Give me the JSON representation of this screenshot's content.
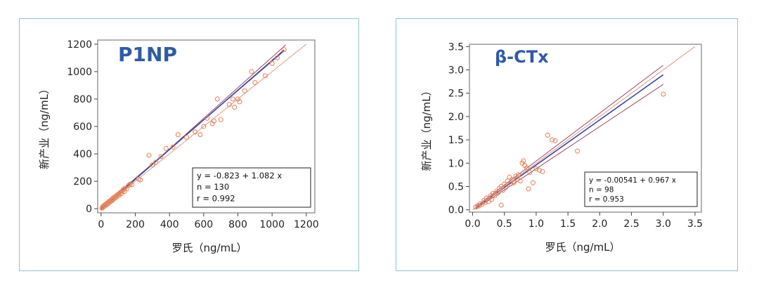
{
  "chart_data": [
    {
      "type": "scatter",
      "title": "P1NP",
      "xlabel": "罗氏（ng/mL）",
      "ylabel": "新产业（ng/mL）",
      "xlim": [
        -20,
        1250
      ],
      "ylim": [
        -30,
        1230
      ],
      "xticks": [
        0,
        200,
        400,
        600,
        800,
        1000,
        1200
      ],
      "yticks": [
        0,
        200,
        400,
        600,
        800,
        1000,
        1200
      ],
      "grid": false,
      "stats": [
        "y = -0.823  +  1.082  x",
        "n = 130",
        "r = 0.992"
      ],
      "regression": {
        "intercept": -0.823,
        "slope": 1.082,
        "x_range": [
          0,
          1070
        ]
      },
      "ci_lines": [
        {
          "x": [
            0,
            1080
          ],
          "y": [
            -10,
            1195
          ]
        },
        {
          "x": [
            0,
            1070
          ],
          "y": [
            8,
            1150
          ]
        }
      ],
      "identity_line": {
        "x": [
          0,
          1200
        ],
        "y": [
          0,
          1200
        ]
      },
      "points": [
        [
          5,
          4
        ],
        [
          8,
          10
        ],
        [
          12,
          18
        ],
        [
          15,
          14
        ],
        [
          18,
          25
        ],
        [
          20,
          22
        ],
        [
          25,
          30
        ],
        [
          28,
          26
        ],
        [
          32,
          38
        ],
        [
          35,
          33
        ],
        [
          40,
          45
        ],
        [
          42,
          40
        ],
        [
          45,
          52
        ],
        [
          50,
          48
        ],
        [
          55,
          60
        ],
        [
          58,
          55
        ],
        [
          62,
          68
        ],
        [
          65,
          60
        ],
        [
          70,
          75
        ],
        [
          72,
          80
        ],
        [
          75,
          72
        ],
        [
          80,
          85
        ],
        [
          85,
          90
        ],
        [
          88,
          82
        ],
        [
          90,
          95
        ],
        [
          95,
          100
        ],
        [
          100,
          105
        ],
        [
          105,
          98
        ],
        [
          110,
          115
        ],
        [
          115,
          120
        ],
        [
          120,
          110
        ],
        [
          125,
          130
        ],
        [
          130,
          140
        ],
        [
          135,
          125
        ],
        [
          140,
          150
        ],
        [
          150,
          145
        ],
        [
          160,
          170
        ],
        [
          170,
          180
        ],
        [
          180,
          175
        ],
        [
          220,
          215
        ],
        [
          230,
          210
        ],
        [
          280,
          390
        ],
        [
          300,
          320
        ],
        [
          320,
          340
        ],
        [
          350,
          380
        ],
        [
          380,
          440
        ],
        [
          420,
          450
        ],
        [
          450,
          540
        ],
        [
          500,
          520
        ],
        [
          550,
          560
        ],
        [
          580,
          540
        ],
        [
          600,
          600
        ],
        [
          620,
          660
        ],
        [
          650,
          620
        ],
        [
          660,
          640
        ],
        [
          680,
          800
        ],
        [
          700,
          650
        ],
        [
          750,
          760
        ],
        [
          770,
          800
        ],
        [
          780,
          740
        ],
        [
          800,
          800
        ],
        [
          810,
          780
        ],
        [
          840,
          860
        ],
        [
          880,
          1000
        ],
        [
          900,
          920
        ],
        [
          960,
          970
        ],
        [
          1000,
          1060
        ],
        [
          1030,
          1100
        ],
        [
          1070,
          1160
        ]
      ]
    },
    {
      "type": "scatter",
      "title": "β-CTx",
      "xlabel": "罗氏（ng/mL）",
      "ylabel": "新产业（ng/mL）",
      "xlim": [
        -0.05,
        3.6
      ],
      "ylim": [
        -0.05,
        3.55
      ],
      "xticks": [
        0.0,
        0.5,
        1.0,
        1.5,
        2.0,
        2.5,
        3.0,
        3.5
      ],
      "yticks": [
        0.0,
        0.5,
        1.0,
        1.5,
        2.0,
        2.5,
        3.0,
        3.5
      ],
      "grid": false,
      "stats": [
        "y = -0.00541  +  0.967  x",
        "n = 98",
        "r = 0.953"
      ],
      "regression": {
        "intercept": -0.00541,
        "slope": 0.967,
        "x_range": [
          0.05,
          3.0
        ]
      },
      "ci_lines": [
        {
          "x": [
            0.05,
            3.0
          ],
          "y": [
            0.07,
            3.1
          ]
        },
        {
          "x": [
            0.05,
            3.0
          ],
          "y": [
            0.02,
            2.69
          ]
        }
      ],
      "identity_line": {
        "x": [
          0,
          3.5
        ],
        "y": [
          0,
          3.5
        ]
      },
      "points": [
        [
          0.05,
          0.06
        ],
        [
          0.08,
          0.09
        ],
        [
          0.1,
          0.08
        ],
        [
          0.12,
          0.13
        ],
        [
          0.15,
          0.12
        ],
        [
          0.18,
          0.2
        ],
        [
          0.2,
          0.16
        ],
        [
          0.22,
          0.25
        ],
        [
          0.25,
          0.18
        ],
        [
          0.28,
          0.3
        ],
        [
          0.3,
          0.22
        ],
        [
          0.32,
          0.35
        ],
        [
          0.35,
          0.3
        ],
        [
          0.38,
          0.4
        ],
        [
          0.4,
          0.36
        ],
        [
          0.42,
          0.46
        ],
        [
          0.45,
          0.1
        ],
        [
          0.45,
          0.5
        ],
        [
          0.48,
          0.42
        ],
        [
          0.5,
          0.55
        ],
        [
          0.52,
          0.48
        ],
        [
          0.55,
          0.62
        ],
        [
          0.58,
          0.7
        ],
        [
          0.6,
          0.56
        ],
        [
          0.62,
          0.65
        ],
        [
          0.65,
          0.58
        ],
        [
          0.68,
          0.72
        ],
        [
          0.7,
          0.66
        ],
        [
          0.72,
          0.75
        ],
        [
          0.75,
          0.62
        ],
        [
          0.78,
          1.0
        ],
        [
          0.8,
          1.05
        ],
        [
          0.82,
          0.95
        ],
        [
          0.85,
          0.9
        ],
        [
          0.88,
          0.45
        ],
        [
          0.9,
          0.8
        ],
        [
          0.95,
          0.58
        ],
        [
          1.0,
          0.88
        ],
        [
          1.05,
          0.85
        ],
        [
          1.1,
          0.82
        ],
        [
          1.18,
          1.6
        ],
        [
          1.25,
          1.5
        ],
        [
          1.3,
          1.48
        ],
        [
          1.65,
          1.26
        ],
        [
          3.0,
          2.48
        ]
      ]
    }
  ]
}
